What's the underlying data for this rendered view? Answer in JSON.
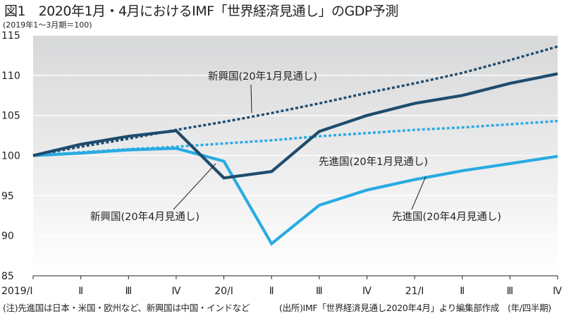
{
  "title": "図1　2020年1月・4月におけるIMF「世界経済見通し」のGDP予測",
  "subtitle": "(2019年1～3月期＝100)",
  "footnotes": {
    "note": "(注)先進国は日本・米国・欧州など、新興国は中国・インドなど",
    "source": "(出所)IMF「世界経済見通し2020年4月」より編集部作成",
    "unit": "(年/四半期)"
  },
  "chart_data": {
    "type": "line",
    "title": "図1　2020年1月・4月におけるIMF「世界経済見通し」のGDP予測",
    "ylabel": "(2019年1～3月期＝100)",
    "xlabel": "(年/四半期)",
    "ylim": [
      85,
      115
    ],
    "yticks": [
      85,
      90,
      95,
      100,
      105,
      110,
      115
    ],
    "grid": "horizontal",
    "legend": "inline-annotations",
    "categories": [
      "2019/Ⅰ",
      "Ⅱ",
      "Ⅲ",
      "Ⅳ",
      "20/Ⅰ",
      "Ⅱ",
      "Ⅲ",
      "Ⅳ",
      "21/Ⅰ",
      "Ⅱ",
      "Ⅲ",
      "Ⅳ"
    ],
    "series": [
      {
        "name": "新興国(20年1月見通し)",
        "color": "#1f4c6e",
        "style": "dashed",
        "values": [
          100,
          101.1,
          102.1,
          103.2,
          104.2,
          105.3,
          106.5,
          107.8,
          109.0,
          110.3,
          111.9,
          113.6
        ]
      },
      {
        "name": "新興国(20年4月見通し)",
        "color": "#1f4c6e",
        "style": "solid",
        "values": [
          100,
          101.4,
          102.4,
          103.1,
          97.2,
          98.0,
          103.0,
          105.0,
          106.5,
          107.5,
          109.0,
          110.2
        ]
      },
      {
        "name": "先進国(20年1月見通し)",
        "color": "#29abe2",
        "style": "dashed",
        "values": [
          100,
          100.4,
          100.8,
          101.1,
          101.5,
          101.9,
          102.4,
          102.8,
          103.2,
          103.5,
          103.9,
          104.3
        ]
      },
      {
        "name": "先進国(20年4月見通し)",
        "color": "#29abe2",
        "style": "solid",
        "values": [
          100,
          100.3,
          100.7,
          100.9,
          99.3,
          89.0,
          93.8,
          95.7,
          97.0,
          98.1,
          99.0,
          99.9
        ]
      }
    ]
  }
}
